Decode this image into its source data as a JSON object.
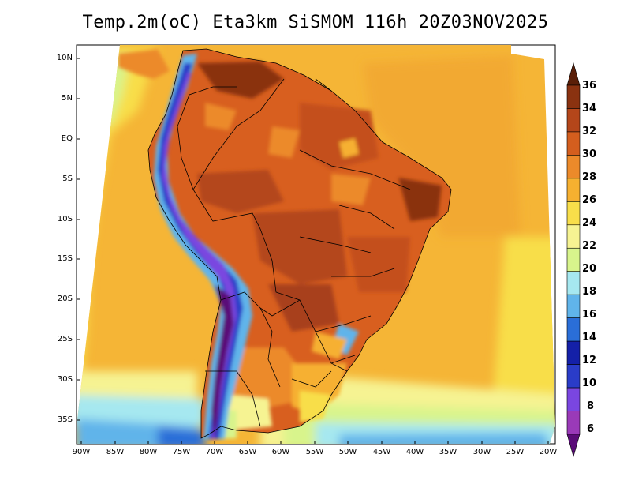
{
  "title": "Temp.2m(oC) Eta3km SiSMOM 116h 20Z03NOV2025",
  "map": {
    "variable": "2 m air temperature",
    "units": "oC",
    "region": "South America",
    "lat_labels": [
      "10N",
      "5N",
      "EQ",
      "5S",
      "10S",
      "15S",
      "20S",
      "25S",
      "30S",
      "35S"
    ],
    "lon_labels": [
      "90W",
      "85W",
      "80W",
      "75W",
      "70W",
      "65W",
      "60W",
      "55W",
      "50W",
      "45W",
      "40W",
      "35W",
      "30W",
      "25W",
      "20W"
    ]
  },
  "colorbar": {
    "labels": [
      "36",
      "34",
      "32",
      "30",
      "28",
      "26",
      "24",
      "22",
      "20",
      "18",
      "16",
      "14",
      "12",
      "10",
      "8",
      "6"
    ],
    "colors": [
      "#5a1f08",
      "#8a3210",
      "#b4461a",
      "#d45e1e",
      "#ec8a2a",
      "#f6b030",
      "#f8de4a",
      "#f6f392",
      "#d8f48c",
      "#a6e8f0",
      "#60b4ea",
      "#2a6ed8",
      "#1420a8",
      "#2a3cc8",
      "#7a46e0",
      "#9a3ab8",
      "#5a0c78"
    ]
  }
}
